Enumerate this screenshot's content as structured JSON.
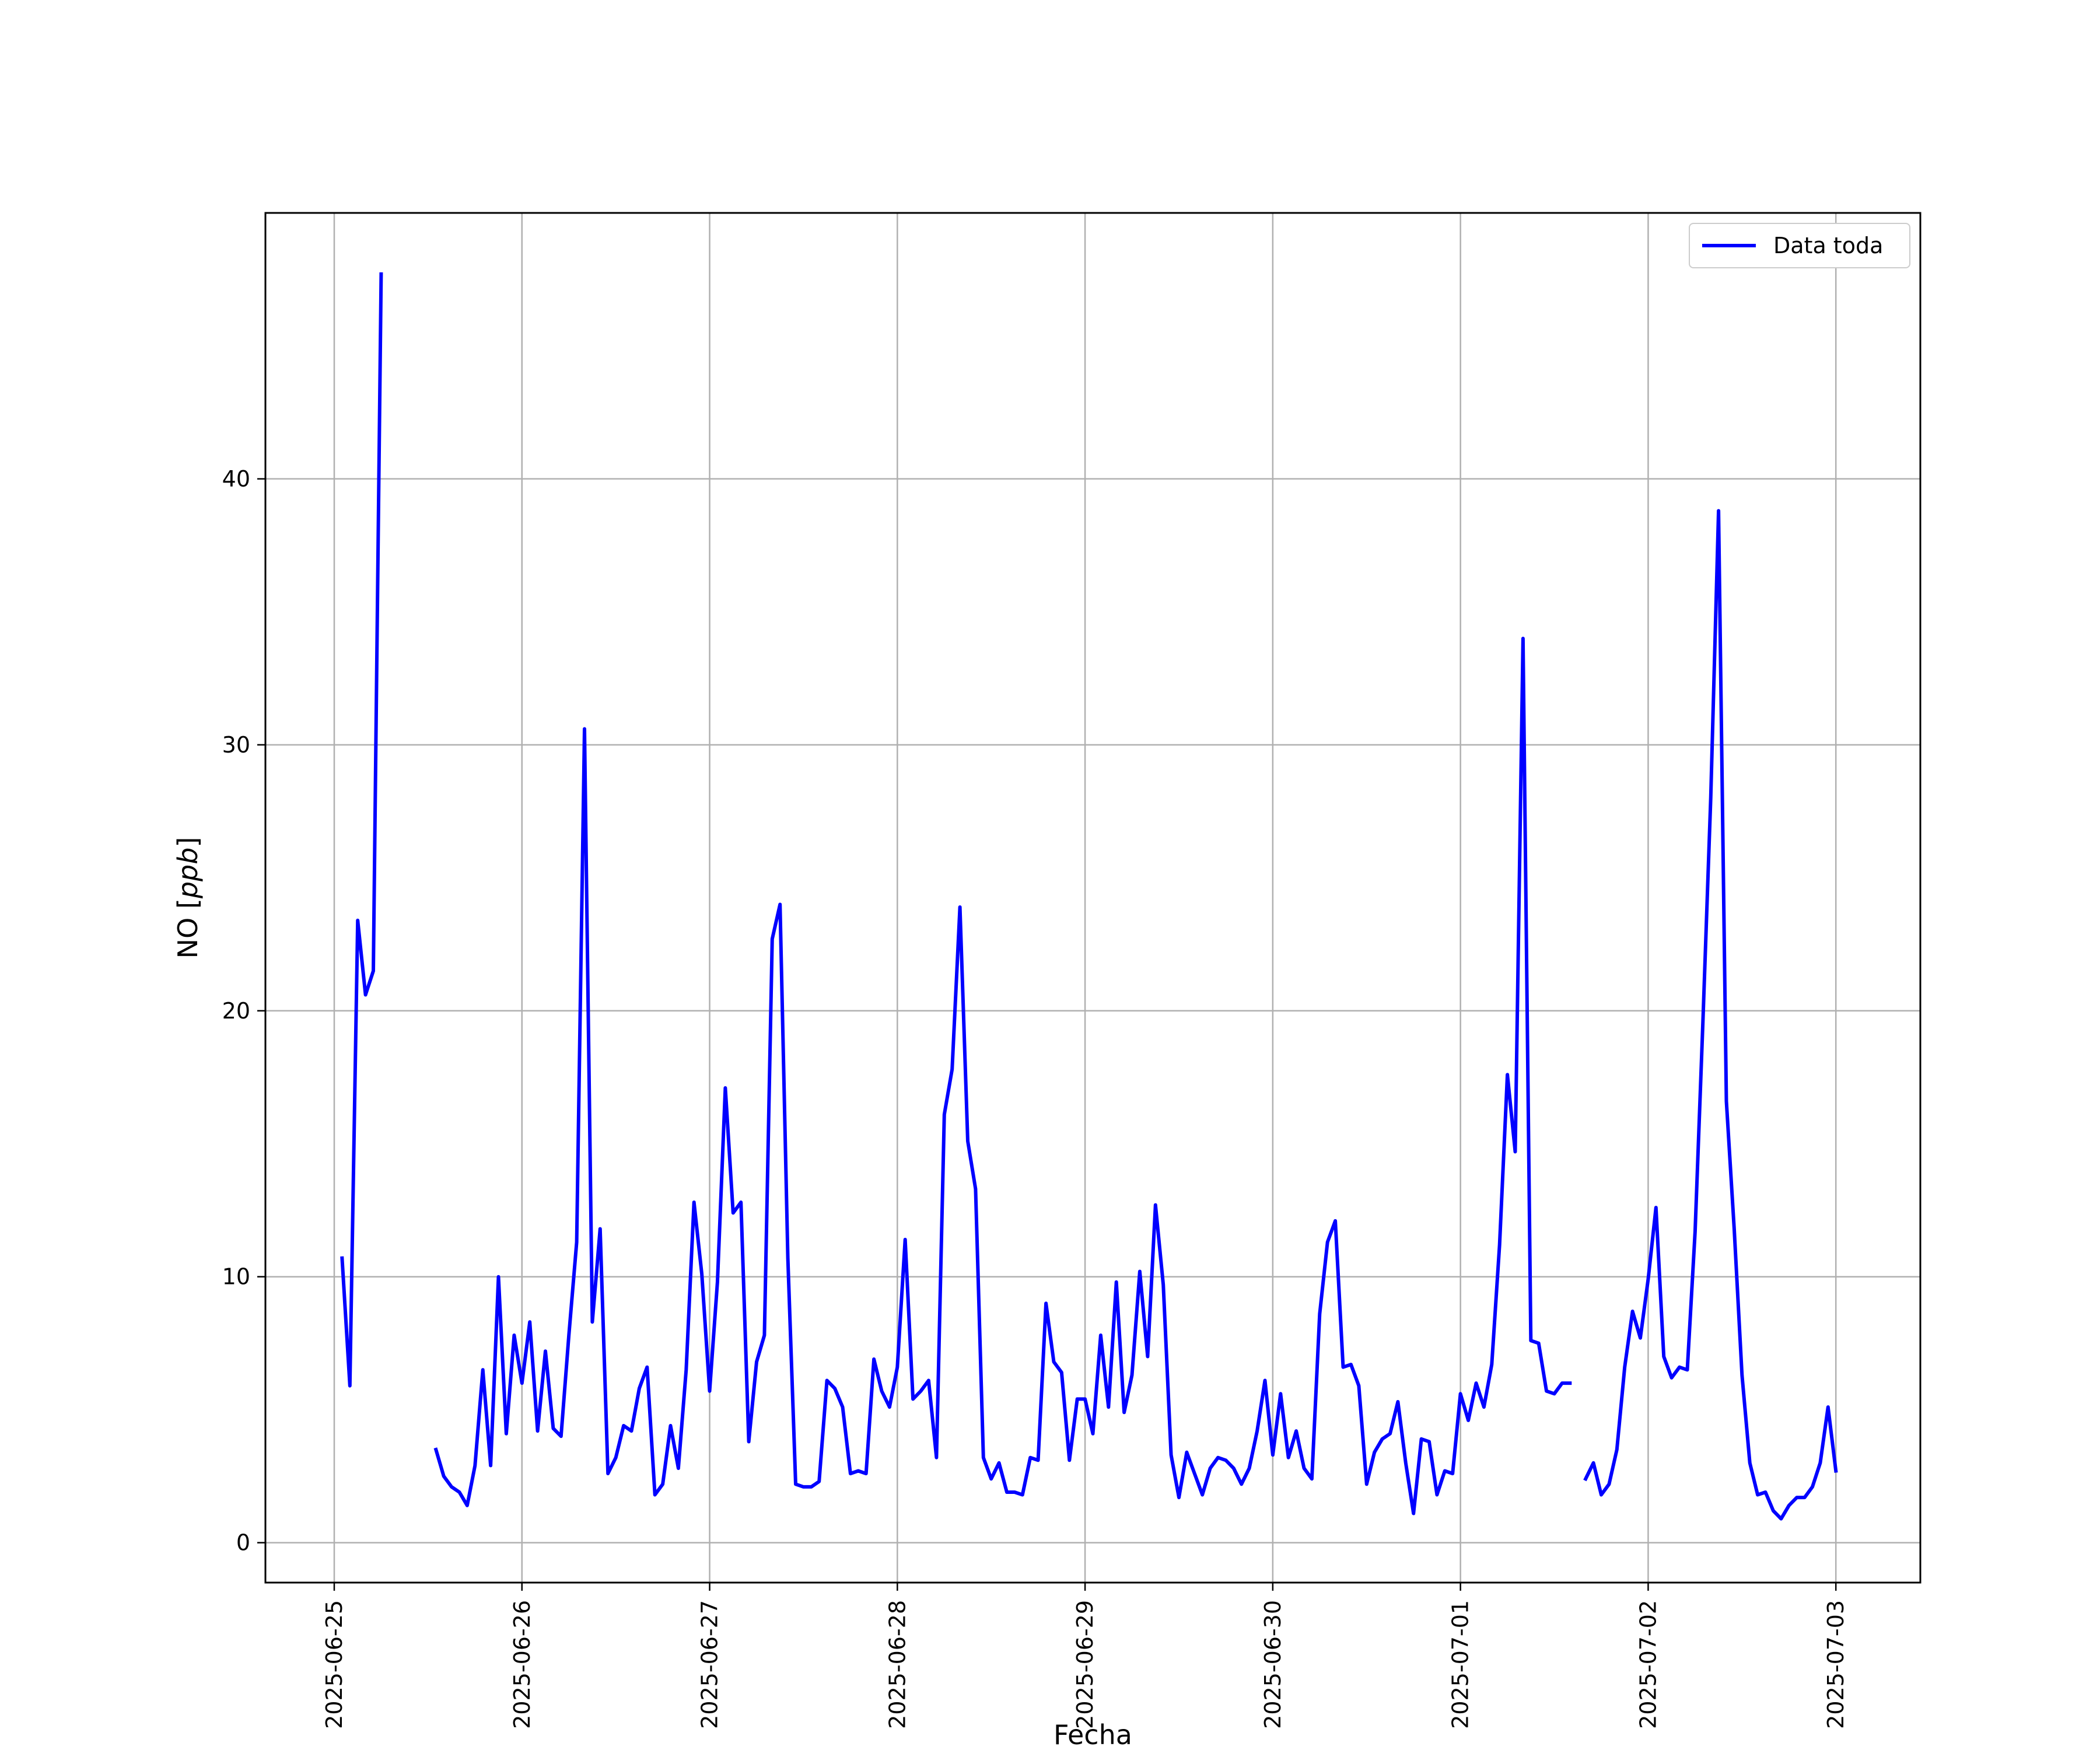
{
  "chart_data": {
    "type": "line",
    "title": "",
    "xlabel": "Fecha",
    "ylabel_main": "NO",
    "ylabel_unit": "ppb",
    "colors": {
      "series": "#0000ff",
      "grid": "#b0b0b0",
      "axes": "#000000"
    },
    "grid": true,
    "legend": {
      "placement": "top-right",
      "entries": [
        "Data toda"
      ]
    },
    "xlim": [
      "2025-06-24 15:12",
      "2025-07-03 10:48"
    ],
    "ylim": [
      -1.5,
      50
    ],
    "x_ticks": [
      "2025-06-25",
      "2025-06-26",
      "2025-06-27",
      "2025-06-28",
      "2025-06-29",
      "2025-06-30",
      "2025-07-01",
      "2025-07-02",
      "2025-07-03"
    ],
    "y_ticks": [
      0,
      10,
      20,
      30,
      40
    ],
    "series": [
      {
        "name": "Data toda",
        "segments": [
          [
            [
              "2025-06-25 01:00",
              10.7
            ],
            [
              "2025-06-25 02:00",
              5.9
            ],
            [
              "2025-06-25 03:00",
              23.4
            ],
            [
              "2025-06-25 04:00",
              20.6
            ],
            [
              "2025-06-25 05:00",
              21.5
            ],
            [
              "2025-06-25 06:00",
              47.7
            ]
          ],
          [
            [
              "2025-06-25 13:00",
              3.5
            ],
            [
              "2025-06-25 14:00",
              2.5
            ],
            [
              "2025-06-25 15:00",
              2.1
            ],
            [
              "2025-06-25 16:00",
              1.9
            ],
            [
              "2025-06-25 17:00",
              1.4
            ],
            [
              "2025-06-25 18:00",
              2.9
            ],
            [
              "2025-06-25 19:00",
              6.5
            ],
            [
              "2025-06-25 20:00",
              2.9
            ],
            [
              "2025-06-25 21:00",
              10.0
            ],
            [
              "2025-06-25 22:00",
              4.1
            ],
            [
              "2025-06-25 23:00",
              7.8
            ],
            [
              "2025-06-26 00:00",
              6.0
            ],
            [
              "2025-06-26 01:00",
              8.3
            ],
            [
              "2025-06-26 02:00",
              4.2
            ],
            [
              "2025-06-26 03:00",
              7.2
            ],
            [
              "2025-06-26 04:00",
              4.3
            ],
            [
              "2025-06-26 05:00",
              4.0
            ],
            [
              "2025-06-26 06:00",
              7.8
            ],
            [
              "2025-06-26 07:00",
              11.3
            ],
            [
              "2025-06-26 08:00",
              30.6
            ],
            [
              "2025-06-26 09:00",
              8.3
            ],
            [
              "2025-06-26 10:00",
              11.8
            ],
            [
              "2025-06-26 11:00",
              2.6
            ],
            [
              "2025-06-26 12:00",
              3.2
            ],
            [
              "2025-06-26 13:00",
              4.4
            ],
            [
              "2025-06-26 14:00",
              4.2
            ],
            [
              "2025-06-26 15:00",
              5.8
            ],
            [
              "2025-06-26 16:00",
              6.6
            ],
            [
              "2025-06-26 17:00",
              1.8
            ],
            [
              "2025-06-26 18:00",
              2.2
            ],
            [
              "2025-06-26 19:00",
              4.4
            ],
            [
              "2025-06-26 20:00",
              2.8
            ],
            [
              "2025-06-26 21:00",
              6.5
            ],
            [
              "2025-06-26 22:00",
              12.8
            ],
            [
              "2025-06-26 23:00",
              10.1
            ],
            [
              "2025-06-27 00:00",
              5.7
            ],
            [
              "2025-06-27 01:00",
              9.8
            ],
            [
              "2025-06-27 02:00",
              17.1
            ],
            [
              "2025-06-27 03:00",
              12.4
            ],
            [
              "2025-06-27 04:00",
              12.8
            ],
            [
              "2025-06-27 05:00",
              3.8
            ],
            [
              "2025-06-27 06:00",
              6.8
            ],
            [
              "2025-06-27 07:00",
              7.8
            ],
            [
              "2025-06-27 08:00",
              22.7
            ],
            [
              "2025-06-27 09:00",
              24.0
            ],
            [
              "2025-06-27 10:00",
              10.7
            ],
            [
              "2025-06-27 11:00",
              2.2
            ],
            [
              "2025-06-27 12:00",
              2.1
            ],
            [
              "2025-06-27 13:00",
              2.1
            ],
            [
              "2025-06-27 14:00",
              2.3
            ],
            [
              "2025-06-27 15:00",
              6.1
            ],
            [
              "2025-06-27 16:00",
              5.8
            ],
            [
              "2025-06-27 17:00",
              5.1
            ],
            [
              "2025-06-27 18:00",
              2.6
            ],
            [
              "2025-06-27 19:00",
              2.7
            ],
            [
              "2025-06-27 20:00",
              2.6
            ],
            [
              "2025-06-27 21:00",
              6.9
            ],
            [
              "2025-06-27 22:00",
              5.7
            ],
            [
              "2025-06-27 23:00",
              5.1
            ],
            [
              "2025-06-28 00:00",
              6.6
            ],
            [
              "2025-06-28 01:00",
              11.4
            ],
            [
              "2025-06-28 02:00",
              5.4
            ],
            [
              "2025-06-28 03:00",
              5.7
            ],
            [
              "2025-06-28 04:00",
              6.1
            ],
            [
              "2025-06-28 05:00",
              3.2
            ],
            [
              "2025-06-28 06:00",
              16.1
            ],
            [
              "2025-06-28 07:00",
              17.8
            ],
            [
              "2025-06-28 08:00",
              23.9
            ],
            [
              "2025-06-28 09:00",
              15.1
            ],
            [
              "2025-06-28 10:00",
              13.3
            ],
            [
              "2025-06-28 11:00",
              3.2
            ],
            [
              "2025-06-28 12:00",
              2.4
            ],
            [
              "2025-06-28 13:00",
              3.0
            ],
            [
              "2025-06-28 14:00",
              1.9
            ],
            [
              "2025-06-28 15:00",
              1.9
            ],
            [
              "2025-06-28 16:00",
              1.8
            ],
            [
              "2025-06-28 17:00",
              3.2
            ],
            [
              "2025-06-28 18:00",
              3.1
            ],
            [
              "2025-06-28 19:00",
              9.0
            ],
            [
              "2025-06-28 20:00",
              6.8
            ],
            [
              "2025-06-28 21:00",
              6.4
            ],
            [
              "2025-06-28 22:00",
              3.1
            ],
            [
              "2025-06-28 23:00",
              5.4
            ],
            [
              "2025-06-29 00:00",
              5.4
            ],
            [
              "2025-06-29 01:00",
              4.1
            ],
            [
              "2025-06-29 02:00",
              7.8
            ],
            [
              "2025-06-29 03:00",
              5.1
            ],
            [
              "2025-06-29 04:00",
              9.8
            ],
            [
              "2025-06-29 05:00",
              4.9
            ],
            [
              "2025-06-29 06:00",
              6.3
            ],
            [
              "2025-06-29 07:00",
              10.2
            ],
            [
              "2025-06-29 08:00",
              7.0
            ],
            [
              "2025-06-29 09:00",
              12.7
            ],
            [
              "2025-06-29 10:00",
              9.7
            ],
            [
              "2025-06-29 11:00",
              3.3
            ],
            [
              "2025-06-29 12:00",
              1.7
            ],
            [
              "2025-06-29 13:00",
              3.4
            ],
            [
              "2025-06-29 14:00",
              2.6
            ],
            [
              "2025-06-29 15:00",
              1.8
            ],
            [
              "2025-06-29 16:00",
              2.8
            ],
            [
              "2025-06-29 17:00",
              3.2
            ],
            [
              "2025-06-29 18:00",
              3.1
            ],
            [
              "2025-06-29 19:00",
              2.8
            ],
            [
              "2025-06-29 20:00",
              2.2
            ],
            [
              "2025-06-29 21:00",
              2.8
            ],
            [
              "2025-06-29 22:00",
              4.2
            ],
            [
              "2025-06-29 23:00",
              6.1
            ],
            [
              "2025-06-30 00:00",
              3.3
            ],
            [
              "2025-06-30 01:00",
              5.6
            ],
            [
              "2025-06-30 02:00",
              3.2
            ],
            [
              "2025-06-30 03:00",
              4.2
            ],
            [
              "2025-06-30 04:00",
              2.8
            ],
            [
              "2025-06-30 05:00",
              2.4
            ],
            [
              "2025-06-30 06:00",
              8.6
            ],
            [
              "2025-06-30 07:00",
              11.3
            ],
            [
              "2025-06-30 08:00",
              12.1
            ],
            [
              "2025-06-30 09:00",
              6.6
            ],
            [
              "2025-06-30 10:00",
              6.7
            ],
            [
              "2025-06-30 11:00",
              5.9
            ],
            [
              "2025-06-30 12:00",
              2.2
            ],
            [
              "2025-06-30 13:00",
              3.4
            ],
            [
              "2025-06-30 14:00",
              3.9
            ],
            [
              "2025-06-30 15:00",
              4.1
            ],
            [
              "2025-06-30 16:00",
              5.3
            ],
            [
              "2025-06-30 17:00",
              3.0
            ],
            [
              "2025-06-30 18:00",
              1.1
            ],
            [
              "2025-06-30 19:00",
              3.9
            ],
            [
              "2025-06-30 20:00",
              3.8
            ],
            [
              "2025-06-30 21:00",
              1.8
            ],
            [
              "2025-06-30 22:00",
              2.7
            ],
            [
              "2025-06-30 23:00",
              2.6
            ],
            [
              "2025-07-01 00:00",
              5.6
            ],
            [
              "2025-07-01 01:00",
              4.6
            ],
            [
              "2025-07-01 02:00",
              6.0
            ],
            [
              "2025-07-01 03:00",
              5.1
            ],
            [
              "2025-07-01 04:00",
              6.7
            ],
            [
              "2025-07-01 05:00",
              11.2
            ],
            [
              "2025-07-01 06:00",
              17.6
            ],
            [
              "2025-07-01 07:00",
              14.7
            ],
            [
              "2025-07-01 08:00",
              34.0
            ],
            [
              "2025-07-01 09:00",
              7.6
            ],
            [
              "2025-07-01 10:00",
              7.5
            ],
            [
              "2025-07-01 11:00",
              5.7
            ],
            [
              "2025-07-01 12:00",
              5.6
            ],
            [
              "2025-07-01 13:00",
              6.0
            ],
            [
              "2025-07-01 14:00",
              6.0
            ]
          ],
          [
            [
              "2025-07-01 16:00",
              2.4
            ],
            [
              "2025-07-01 17:00",
              3.0
            ],
            [
              "2025-07-01 18:00",
              1.8
            ],
            [
              "2025-07-01 19:00",
              2.2
            ],
            [
              "2025-07-01 20:00",
              3.5
            ],
            [
              "2025-07-01 21:00",
              6.6
            ],
            [
              "2025-07-01 22:00",
              8.7
            ],
            [
              "2025-07-01 23:00",
              7.7
            ],
            [
              "2025-07-02 00:00",
              9.9
            ],
            [
              "2025-07-02 01:00",
              12.6
            ],
            [
              "2025-07-02 02:00",
              7.0
            ],
            [
              "2025-07-02 03:00",
              6.2
            ],
            [
              "2025-07-02 04:00",
              6.6
            ],
            [
              "2025-07-02 05:00",
              6.5
            ],
            [
              "2025-07-02 06:00",
              11.7
            ],
            [
              "2025-07-02 07:00",
              19.6
            ],
            [
              "2025-07-02 08:00",
              28.0
            ],
            [
              "2025-07-02 09:00",
              38.8
            ],
            [
              "2025-07-02 10:00",
              16.6
            ],
            [
              "2025-07-02 11:00",
              11.8
            ],
            [
              "2025-07-02 12:00",
              6.3
            ],
            [
              "2025-07-02 13:00",
              3.0
            ],
            [
              "2025-07-02 14:00",
              1.8
            ],
            [
              "2025-07-02 15:00",
              1.9
            ],
            [
              "2025-07-02 16:00",
              1.2
            ],
            [
              "2025-07-02 17:00",
              0.9
            ],
            [
              "2025-07-02 18:00",
              1.4
            ],
            [
              "2025-07-02 19:00",
              1.7
            ],
            [
              "2025-07-02 20:00",
              1.7
            ],
            [
              "2025-07-02 21:00",
              2.1
            ],
            [
              "2025-07-02 22:00",
              3.0
            ],
            [
              "2025-07-02 23:00",
              5.1
            ],
            [
              "2025-07-03 00:00",
              2.7
            ]
          ]
        ]
      }
    ]
  }
}
